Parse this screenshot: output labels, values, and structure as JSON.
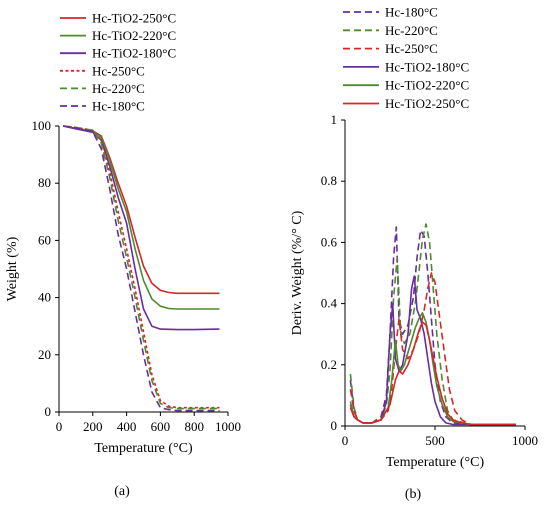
{
  "chart_data": [
    {
      "type": "line",
      "panel_label": "(a)",
      "xlabel": "Temperature (°C)",
      "ylabel": "Weight (%)",
      "xlim": [
        0,
        1000
      ],
      "ylim": [
        0,
        100
      ],
      "xticks": [
        "0",
        "200",
        "400",
        "600",
        "800",
        "1000"
      ],
      "yticks": [
        "0",
        "20",
        "40",
        "60",
        "80",
        "100"
      ],
      "grid": false,
      "legend_position": "top-left",
      "series": [
        {
          "name": "Hc-TiO2-250°C",
          "color": "#d62728",
          "dash": "solid",
          "x": [
            25,
            100,
            200,
            250,
            300,
            350,
            400,
            450,
            500,
            550,
            600,
            650,
            700,
            800,
            950
          ],
          "y": [
            100,
            99.2,
            98.3,
            96.5,
            89,
            80,
            72,
            61,
            51,
            45,
            42.5,
            41.8,
            41.5,
            41.5,
            41.5
          ]
        },
        {
          "name": "Hc-TiO2-220°C",
          "color": "#4e8a2e",
          "dash": "solid",
          "x": [
            25,
            100,
            200,
            250,
            300,
            350,
            400,
            450,
            500,
            550,
            600,
            650,
            700,
            800,
            950
          ],
          "y": [
            100,
            99.1,
            98.2,
            96,
            88,
            78,
            70,
            57,
            46,
            39.5,
            37,
            36.2,
            36,
            36,
            36
          ]
        },
        {
          "name": "Hc-TiO2-180°C",
          "color": "#6a2d9c",
          "dash": "solid",
          "x": [
            25,
            100,
            200,
            250,
            300,
            350,
            400,
            450,
            500,
            550,
            600,
            700,
            800,
            950
          ],
          "y": [
            100,
            99,
            97.8,
            95,
            86,
            75,
            66,
            50,
            36,
            30,
            29,
            28.8,
            28.8,
            29
          ]
        },
        {
          "name": "Hc-250°C",
          "color": "#d62728",
          "dash": "dotted",
          "x": [
            25,
            100,
            200,
            250,
            300,
            350,
            400,
            450,
            500,
            550,
            600,
            650,
            700,
            800,
            950
          ],
          "y": [
            100,
            99.5,
            98.5,
            95,
            84,
            70,
            57,
            43,
            28,
            13,
            4,
            2,
            1.5,
            1.5,
            1.5
          ]
        },
        {
          "name": "Hc-220°C",
          "color": "#4e8a2e",
          "dash": "dashed",
          "x": [
            25,
            100,
            200,
            250,
            300,
            350,
            400,
            450,
            500,
            550,
            600,
            650,
            700,
            800,
            950
          ],
          "y": [
            100,
            99.5,
            98.5,
            94,
            82,
            67,
            54,
            40,
            25,
            11,
            3,
            1.5,
            1.2,
            1.2,
            1.2
          ]
        },
        {
          "name": "Hc-180°C",
          "color": "#6a2d9c",
          "dash": "dashed",
          "x": [
            25,
            100,
            200,
            250,
            300,
            350,
            400,
            450,
            500,
            550,
            600,
            650,
            700,
            800,
            950
          ],
          "y": [
            100,
            99.3,
            98,
            92,
            78,
            62,
            50,
            35,
            20,
            7,
            1.5,
            0.8,
            0.5,
            0.5,
            0.5
          ]
        }
      ]
    },
    {
      "type": "line",
      "panel_label": "(b)",
      "xlabel": "Temperature (°C)",
      "ylabel": "Deriv. Weight (%/° C)",
      "xlim": [
        0,
        1000
      ],
      "ylim": [
        0,
        1
      ],
      "xticks": [
        "0",
        "500",
        "1000"
      ],
      "yticks": [
        "0",
        "0.2",
        "0.4",
        "0.6",
        "0.8",
        "1"
      ],
      "grid": false,
      "legend_position": "top",
      "series": [
        {
          "name": "Hc-180°C",
          "color": "#6a2d9c",
          "dash": "dashed",
          "x": [
            30,
            50,
            70,
            100,
            150,
            200,
            230,
            250,
            270,
            285,
            300,
            320,
            350,
            380,
            400,
            420,
            440,
            460,
            480,
            500,
            530,
            560,
            600,
            700,
            800,
            950
          ],
          "y": [
            0.15,
            0.05,
            0.02,
            0.01,
            0.01,
            0.03,
            0.1,
            0.3,
            0.55,
            0.65,
            0.35,
            0.3,
            0.33,
            0.42,
            0.55,
            0.64,
            0.62,
            0.5,
            0.35,
            0.2,
            0.08,
            0.03,
            0.01,
            0.005,
            0.005,
            0.005
          ]
        },
        {
          "name": "Hc-220°C",
          "color": "#4e8a2e",
          "dash": "dashed",
          "x": [
            30,
            50,
            70,
            100,
            150,
            200,
            230,
            250,
            270,
            290,
            310,
            330,
            360,
            390,
            410,
            430,
            450,
            470,
            490,
            510,
            540,
            570,
            600,
            700,
            800,
            950
          ],
          "y": [
            0.17,
            0.06,
            0.02,
            0.01,
            0.01,
            0.02,
            0.07,
            0.18,
            0.42,
            0.55,
            0.3,
            0.27,
            0.3,
            0.4,
            0.5,
            0.61,
            0.66,
            0.6,
            0.45,
            0.3,
            0.15,
            0.05,
            0.02,
            0.005,
            0.005,
            0.005
          ]
        },
        {
          "name": "Hc-250°C",
          "color": "#d62728",
          "dash": "dashed",
          "x": [
            30,
            50,
            70,
            100,
            150,
            200,
            240,
            260,
            280,
            300,
            320,
            350,
            380,
            410,
            440,
            460,
            480,
            500,
            520,
            550,
            580,
            610,
            650,
            700,
            800,
            950
          ],
          "y": [
            0.12,
            0.05,
            0.02,
            0.01,
            0.01,
            0.02,
            0.05,
            0.12,
            0.25,
            0.35,
            0.25,
            0.22,
            0.25,
            0.3,
            0.38,
            0.45,
            0.5,
            0.47,
            0.38,
            0.25,
            0.12,
            0.05,
            0.02,
            0.005,
            0.005,
            0.005
          ]
        },
        {
          "name": "Hc-TiO2-180°C",
          "color": "#6a2d9c",
          "dash": "solid",
          "x": [
            30,
            50,
            70,
            100,
            150,
            200,
            230,
            250,
            265,
            280,
            300,
            320,
            350,
            370,
            385,
            400,
            420,
            440,
            460,
            480,
            500,
            530,
            560,
            600,
            700,
            950
          ],
          "y": [
            0.07,
            0.03,
            0.02,
            0.01,
            0.01,
            0.02,
            0.08,
            0.3,
            0.4,
            0.22,
            0.18,
            0.2,
            0.3,
            0.45,
            0.49,
            0.38,
            0.35,
            0.3,
            0.22,
            0.14,
            0.08,
            0.03,
            0.01,
            0.005,
            0.005,
            0.005
          ]
        },
        {
          "name": "Hc-TiO2-220°C",
          "color": "#4e8a2e",
          "dash": "solid",
          "x": [
            30,
            50,
            70,
            100,
            150,
            200,
            240,
            260,
            280,
            295,
            310,
            330,
            360,
            390,
            410,
            430,
            450,
            470,
            490,
            510,
            540,
            570,
            600,
            700,
            800,
            950
          ],
          "y": [
            0.08,
            0.03,
            0.02,
            0.01,
            0.01,
            0.02,
            0.06,
            0.15,
            0.28,
            0.2,
            0.18,
            0.2,
            0.26,
            0.32,
            0.35,
            0.37,
            0.34,
            0.28,
            0.2,
            0.13,
            0.07,
            0.03,
            0.015,
            0.005,
            0.005,
            0.005
          ]
        },
        {
          "name": "Hc-TiO2-250°C",
          "color": "#d62728",
          "dash": "solid",
          "x": [
            30,
            50,
            70,
            100,
            150,
            200,
            250,
            280,
            300,
            320,
            350,
            380,
            410,
            430,
            450,
            470,
            490,
            510,
            540,
            570,
            600,
            650,
            700,
            800,
            950
          ],
          "y": [
            0.06,
            0.03,
            0.02,
            0.01,
            0.01,
            0.02,
            0.07,
            0.15,
            0.18,
            0.17,
            0.2,
            0.25,
            0.31,
            0.34,
            0.33,
            0.28,
            0.22,
            0.16,
            0.09,
            0.04,
            0.02,
            0.01,
            0.005,
            0.005,
            0.005
          ]
        }
      ]
    }
  ]
}
